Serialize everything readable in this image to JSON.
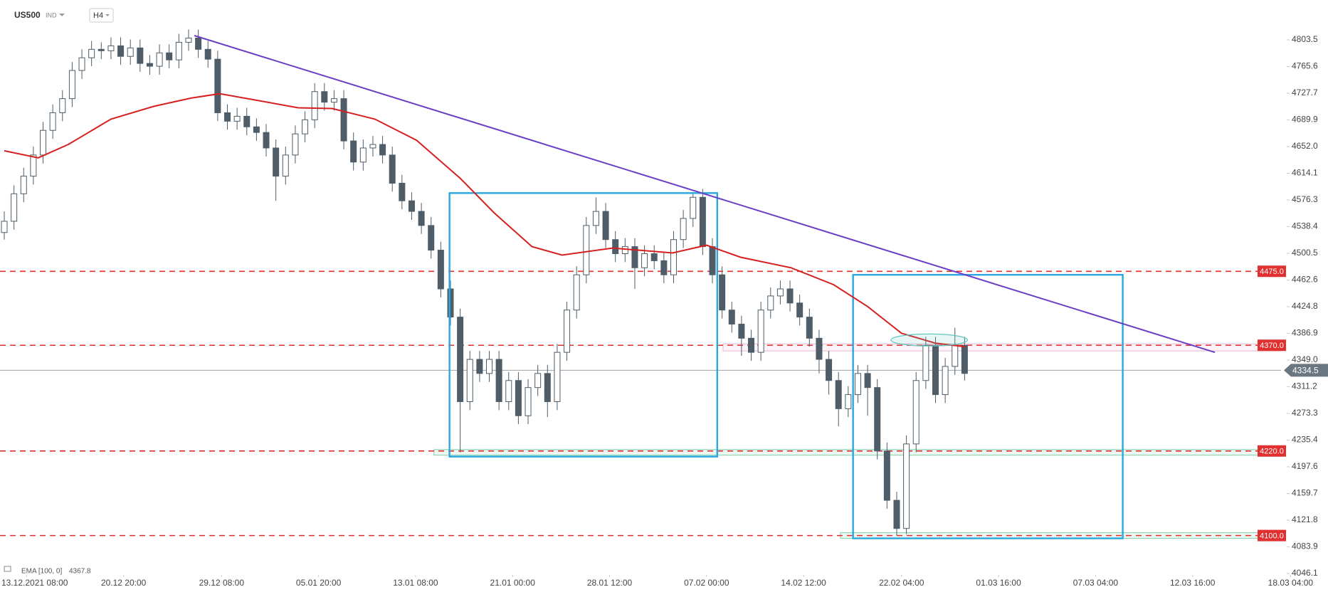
{
  "chart_data": {
    "type": "candlestick",
    "symbol": "US500",
    "market": "IND",
    "timeframe": "H4",
    "open": [
      4530,
      4546,
      4585,
      4610,
      4640,
      4675,
      4700,
      4720,
      4760,
      4778,
      4790,
      4788,
      4795,
      4780,
      4792,
      4770,
      4766,
      4785,
      4775,
      4800,
      4806,
      4790,
      4776,
      4700,
      4688,
      4695,
      4680,
      4672,
      4650,
      4610,
      4640,
      4670,
      4690,
      4730,
      4715,
      4720,
      4660,
      4630,
      4650,
      4655,
      4640,
      4600,
      4575,
      4560,
      4540,
      4505,
      4450,
      4410,
      4290,
      4350,
      4330,
      4350,
      4290,
      4320,
      4270,
      4310,
      4330,
      4290,
      4360,
      4420,
      4470,
      4540,
      4560,
      4520,
      4500,
      4510,
      4480,
      4500,
      4490,
      4470,
      4520,
      4550,
      4580,
      4510,
      4470,
      4420,
      4400,
      4380,
      4360,
      4420,
      4440,
      4450,
      4430,
      4410,
      4380,
      4350,
      4320,
      4280,
      4300,
      4330,
      4310,
      4220,
      4150,
      4110,
      4230,
      4320,
      4370,
      4300,
      4340,
      4370
    ],
    "high": [
      4560,
      4597,
      4622,
      4652,
      4687,
      4712,
      4732,
      4772,
      4790,
      4802,
      4800,
      4807,
      4807,
      4804,
      4804,
      4782,
      4797,
      4797,
      4812,
      4818,
      4818,
      4802,
      4788,
      4712,
      4707,
      4707,
      4692,
      4684,
      4662,
      4652,
      4682,
      4702,
      4742,
      4742,
      4732,
      4732,
      4672,
      4662,
      4667,
      4667,
      4652,
      4612,
      4587,
      4572,
      4552,
      4517,
      4462,
      4422,
      4362,
      4362,
      4362,
      4362,
      4332,
      4332,
      4322,
      4342,
      4342,
      4372,
      4432,
      4482,
      4552,
      4580,
      4572,
      4532,
      4522,
      4522,
      4512,
      4512,
      4502,
      4532,
      4562,
      4585,
      4592,
      4522,
      4482,
      4432,
      4412,
      4392,
      4432,
      4452,
      4462,
      4462,
      4442,
      4422,
      4392,
      4362,
      4332,
      4312,
      4342,
      4342,
      4322,
      4232,
      4162,
      4242,
      4332,
      4382,
      4382,
      4352,
      4395,
      4382
    ],
    "low": [
      4520,
      4534,
      4573,
      4598,
      4628,
      4663,
      4688,
      4708,
      4748,
      4766,
      4776,
      4776,
      4768,
      4768,
      4758,
      4754,
      4754,
      4763,
      4763,
      4788,
      4778,
      4764,
      4688,
      4676,
      4676,
      4668,
      4660,
      4638,
      4575,
      4598,
      4628,
      4658,
      4678,
      4703,
      4703,
      4648,
      4618,
      4618,
      4638,
      4628,
      4588,
      4563,
      4548,
      4528,
      4493,
      4438,
      4398,
      4218,
      4278,
      4318,
      4318,
      4278,
      4278,
      4258,
      4258,
      4298,
      4268,
      4278,
      4348,
      4408,
      4458,
      4528,
      4508,
      4488,
      4488,
      4450,
      4468,
      4478,
      4458,
      4458,
      4508,
      4538,
      4498,
      4458,
      4408,
      4388,
      4355,
      4348,
      4348,
      4408,
      4428,
      4418,
      4398,
      4368,
      4330,
      4300,
      4255,
      4268,
      4288,
      4270,
      4208,
      4138,
      4100,
      4102,
      4218,
      4308,
      4288,
      4288,
      4328,
      4320
    ],
    "close": [
      4546,
      4585,
      4610,
      4640,
      4675,
      4700,
      4720,
      4760,
      4778,
      4790,
      4788,
      4795,
      4780,
      4792,
      4770,
      4766,
      4785,
      4775,
      4800,
      4806,
      4790,
      4776,
      4700,
      4688,
      4695,
      4680,
      4672,
      4650,
      4610,
      4640,
      4670,
      4690,
      4730,
      4715,
      4720,
      4660,
      4630,
      4650,
      4655,
      4640,
      4600,
      4575,
      4560,
      4540,
      4505,
      4450,
      4410,
      4290,
      4350,
      4330,
      4350,
      4290,
      4320,
      4270,
      4310,
      4330,
      4290,
      4360,
      4420,
      4470,
      4540,
      4560,
      4520,
      4500,
      4510,
      4480,
      4500,
      4490,
      4470,
      4520,
      4550,
      4580,
      4510,
      4470,
      4420,
      4400,
      4380,
      4360,
      4420,
      4440,
      4450,
      4430,
      4410,
      4380,
      4350,
      4320,
      4280,
      4300,
      4330,
      4310,
      4220,
      4150,
      4110,
      4230,
      4320,
      4370,
      4300,
      4340,
      4370,
      4330
    ],
    "ema": {
      "name": "EMA [100, 0]",
      "color": "#d62020",
      "x": [
        0,
        3.5,
        6.6,
        11,
        15.4,
        19.3,
        22.2,
        25.9,
        30.3,
        33.8,
        38.2,
        42.5,
        47,
        50.5,
        54.4,
        57.5,
        62.7,
        68.9,
        72.4,
        75.9,
        81.1,
        85.5,
        89,
        92.5,
        96,
        99.1
      ],
      "values": [
        4646,
        4636,
        4655,
        4691,
        4709,
        4721,
        4727,
        4718,
        4707,
        4706,
        4691,
        4661,
        4607,
        4558,
        4510,
        4498,
        4508,
        4501,
        4512,
        4495,
        4480,
        4456,
        4425,
        4387,
        4373,
        4367.8
      ]
    },
    "trendline": {
      "x": [
        19.6,
        124.8
      ],
      "y": [
        4809.5,
        4360
      ],
      "color": "#6a3fc4"
    },
    "boxes": [
      {
        "x": [
          45.9,
          73.5
        ],
        "y": [
          4212,
          4586
        ],
        "color": "#29a8e0"
      },
      {
        "x": [
          87.5,
          115.3
        ],
        "y": [
          4096,
          4470
        ],
        "color": "#29a8e0"
      }
    ],
    "zones": [
      {
        "x": [
          44.3,
          131.6
        ],
        "y": [
          4214,
          4222
        ],
        "color": "#7fd0a8"
      },
      {
        "x": [
          86.2,
          131.6
        ],
        "y": [
          4096,
          4104
        ],
        "color": "#7fd0a8"
      },
      {
        "x": [
          74.1,
          131.6
        ],
        "y": [
          4362,
          4372
        ],
        "color": "#e9b8d0"
      }
    ],
    "ellipse": {
      "x": [
        91.4,
        99.3
      ],
      "y": [
        4369,
        4386
      ],
      "color": "#5fc8c0"
    },
    "levels": [
      4475,
      4370,
      4220,
      4100
    ],
    "level_labels": [
      "4475.0",
      "4370.0",
      "4220.0",
      "4100.0"
    ],
    "level_color": "#e03030",
    "last_price": 4334.5,
    "xlim": [
      -0.44,
      133.6
    ],
    "ylim": [
      4046.1,
      4860
    ],
    "xticks": [
      {
        "value": 2.3,
        "label": "13.12.2021 08:00"
      },
      {
        "value": 12.3,
        "label": "20.12 20:00"
      },
      {
        "value": 22.4,
        "label": "29.12 08:00"
      },
      {
        "value": 32.4,
        "label": "05.01 20:00"
      },
      {
        "value": 42.4,
        "label": "13.01 08:00"
      },
      {
        "value": 52.4,
        "label": "21.01 00:00"
      },
      {
        "value": 62.4,
        "label": "28.01 12:00"
      },
      {
        "value": 72.4,
        "label": "07.02 00:00"
      },
      {
        "value": 82.4,
        "label": "14.02 12:00"
      },
      {
        "value": 92.5,
        "label": "22.02 04:00"
      },
      {
        "value": 102.5,
        "label": "01.03 16:00"
      },
      {
        "value": 112.5,
        "label": "07.03 04:00"
      },
      {
        "value": 122.5,
        "label": "12.03 16:00"
      },
      {
        "value": 132.6,
        "label": "18.03 04:00"
      }
    ],
    "yticks": [
      4803.5,
      4765.6,
      4727.7,
      4689.9,
      {
        "value": 4652.0,
        "label": "4652.0"
      },
      4614.1,
      4576.3,
      4538.4,
      4500.5,
      4462.6,
      4424.8,
      4386.9,
      {
        "value": 4349.0,
        "label": "4349.0"
      },
      4311.2,
      4273.3,
      4235.4,
      4197.6,
      4159.7,
      4121.8,
      4083.9,
      4046.1
    ]
  }
}
